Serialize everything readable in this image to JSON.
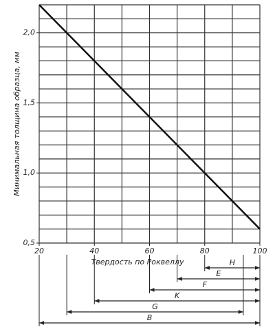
{
  "chart_data": {
    "type": "line",
    "x_label": "Твердость по Роквеллу",
    "y_label": "Минимальная толщина образца, мм",
    "x": [
      20,
      100
    ],
    "series": [
      {
        "color": "#111111",
        "values": [
          2.2,
          0.6
        ]
      }
    ],
    "xlim": [
      20,
      100
    ],
    "ylim": [
      0.5,
      2.2
    ],
    "xticks": [
      20,
      40,
      60,
      80,
      100
    ],
    "yticks": [
      {
        "value": 0.5,
        "label": "0,5"
      },
      {
        "value": 1.0,
        "label": "1,0"
      },
      {
        "value": 1.5,
        "label": "1,5"
      },
      {
        "value": 2.0,
        "label": "2,0"
      }
    ],
    "xgrid": [
      20,
      30,
      40,
      50,
      60,
      70,
      80,
      90,
      100
    ],
    "ygrid": [
      0.5,
      0.6,
      0.7,
      0.8,
      0.9,
      1.0,
      1.1,
      1.2,
      1.3,
      1.4,
      1.5,
      1.6,
      1.7,
      1.8,
      1.9,
      2.0,
      2.1,
      2.2
    ],
    "ranges": [
      {
        "label": "H",
        "from": 80,
        "to": 100
      },
      {
        "label": "E",
        "from": 70,
        "to": 100
      },
      {
        "label": "F",
        "from": 60,
        "to": 100
      },
      {
        "label": "K",
        "from": 40,
        "to": 100
      },
      {
        "label": "G",
        "from": 30,
        "to": 94
      },
      {
        "label": "B",
        "from": 20,
        "to": 100
      }
    ]
  }
}
